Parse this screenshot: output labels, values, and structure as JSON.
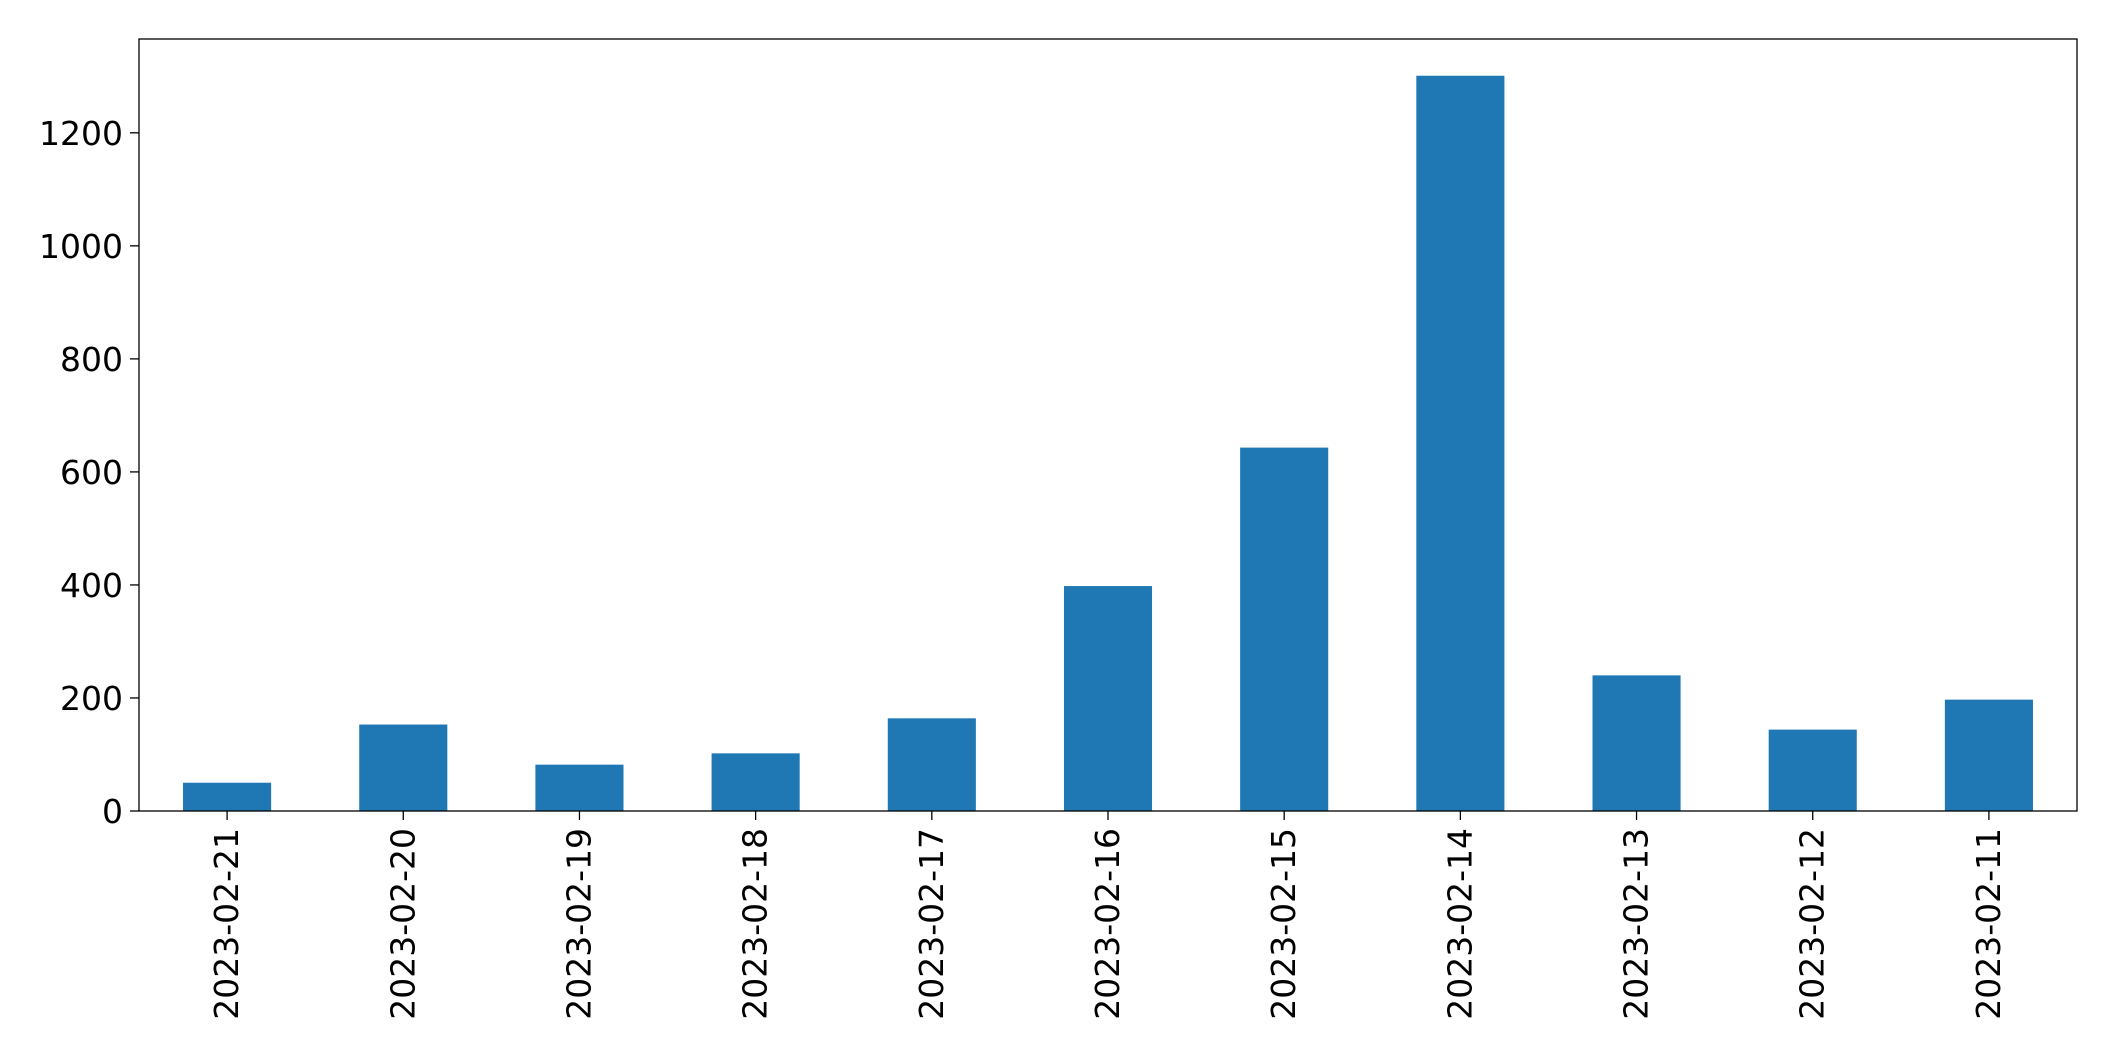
{
  "chart_data": {
    "type": "bar",
    "title": "",
    "xlabel": "",
    "ylabel": "",
    "categories": [
      "2023-02-21",
      "2023-02-20",
      "2023-02-19",
      "2023-02-18",
      "2023-02-17",
      "2023-02-16",
      "2023-02-15",
      "2023-02-14",
      "2023-02-13",
      "2023-02-12",
      "2023-02-11"
    ],
    "values": [
      50,
      153,
      82,
      102,
      164,
      398,
      643,
      1301,
      240,
      144,
      197
    ],
    "ylim": [
      0,
      1366
    ],
    "yticks": [
      0,
      200,
      400,
      600,
      800,
      1000,
      1200
    ],
    "ytick_labels": [
      "0",
      "200",
      "400",
      "600",
      "800",
      "1000",
      "1200"
    ],
    "grid": false,
    "legend": "none",
    "bar_color": "#1f77b4"
  }
}
